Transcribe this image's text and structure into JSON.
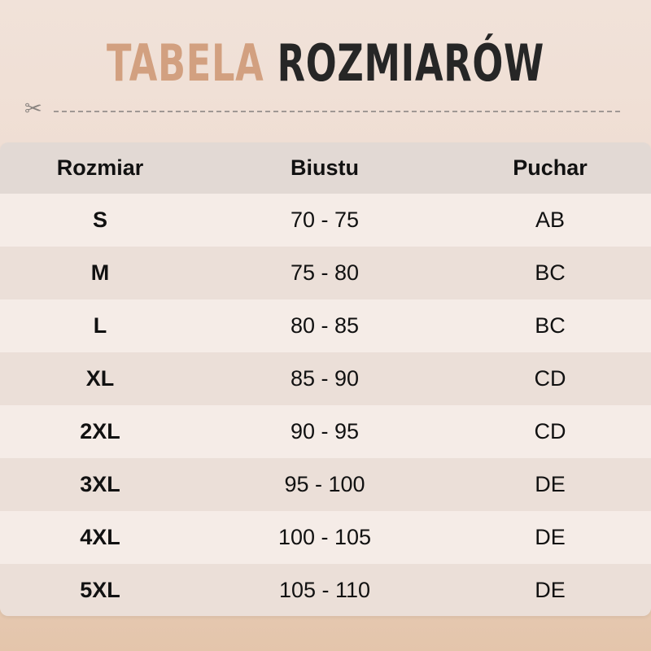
{
  "title": {
    "part1": "TABELA",
    "part2": "ROZMIARÓW",
    "accent_color": "#d2a080"
  },
  "divider": {
    "icon": "scissors-icon"
  },
  "table": {
    "headers": [
      "Rozmiar",
      "Biustu",
      "Puchar"
    ],
    "rows": [
      [
        "S",
        "70 - 75",
        "AB"
      ],
      [
        "M",
        "75 - 80",
        "BC"
      ],
      [
        "L",
        "80 - 85",
        "BC"
      ],
      [
        "XL",
        "85 - 90",
        "CD"
      ],
      [
        "2XL",
        "90 - 95",
        "CD"
      ],
      [
        "3XL",
        "95 - 100",
        "DE"
      ],
      [
        "4XL",
        "100 - 105",
        "DE"
      ],
      [
        "5XL",
        "105 - 110",
        "DE"
      ]
    ]
  }
}
